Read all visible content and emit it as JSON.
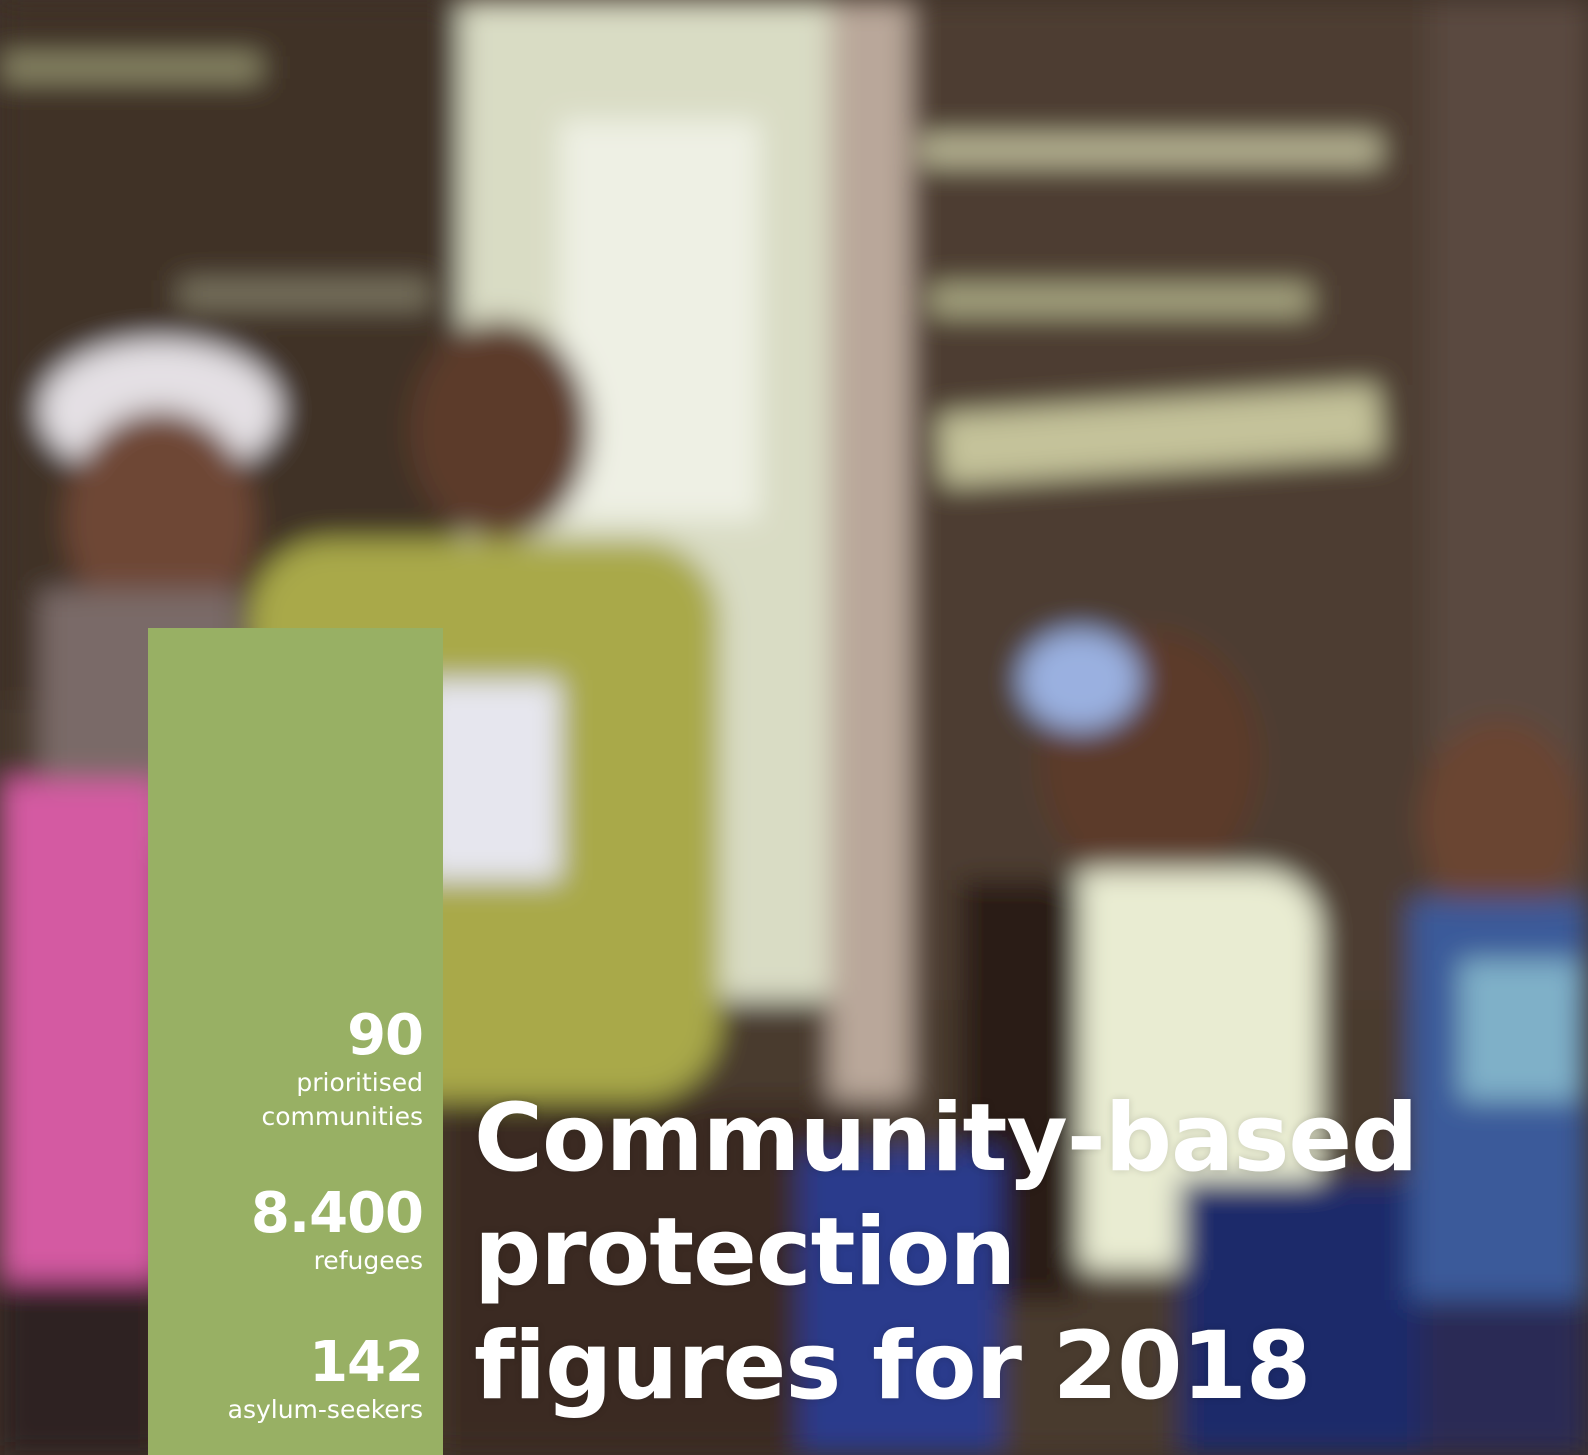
{
  "stats": [
    {
      "number": "90",
      "label_lines": [
        "prioritised",
        "communities"
      ]
    },
    {
      "number": "8.400",
      "label_lines": [
        "refugees"
      ]
    },
    {
      "number": "142",
      "label_lines": [
        "asylum-seekers"
      ]
    }
  ],
  "title_lines": [
    "Community-based",
    "protection",
    "figures for 2018"
  ]
}
